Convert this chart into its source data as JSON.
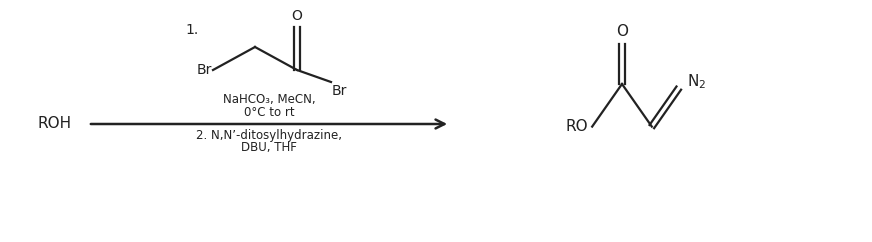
{
  "fig_width": 8.72,
  "fig_height": 2.42,
  "dpi": 100,
  "bg_color": "#ffffff",
  "line_color": "#222222",
  "line_width": 1.6,
  "font_size_main": 10,
  "font_size_small": 8.5,
  "reactant_label": "ROH",
  "reagent_num": "1.",
  "reagent_above1": "NaHCO₃, MeCN,",
  "reagent_above2": "0°C to rt",
  "reagent_below1": "2. N,N’-ditosylhydrazine,",
  "reagent_below2": "DBU, THF",
  "product_ro": "RO",
  "product_o": "O",
  "product_n2": "N₂",
  "struct_br_left": "Br",
  "struct_br_right": "Br",
  "struct_o": "O"
}
